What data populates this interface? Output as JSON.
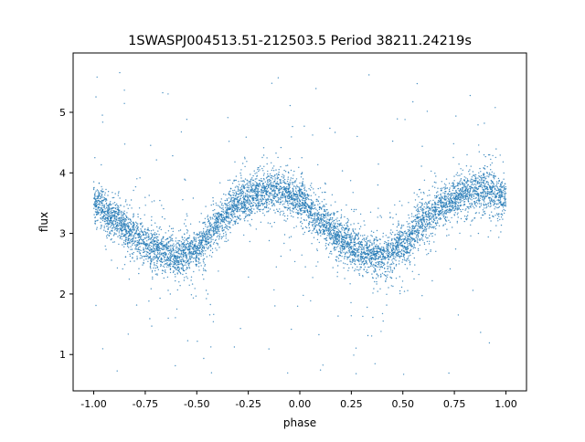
{
  "chart_data": {
    "type": "scatter",
    "title": "1SWASPJ004513.51-212503.5 Period 38211.24219s",
    "xlabel": "phase",
    "ylabel": "flux",
    "xlim": [
      -1.1,
      1.1
    ],
    "ylim": [
      0.4,
      5.98
    ],
    "xticks": [
      "-1.00",
      "-0.75",
      "-0.50",
      "-0.25",
      "0.00",
      "0.25",
      "0.50",
      "0.75",
      "1.00"
    ],
    "xtick_values": [
      -1,
      -0.75,
      -0.5,
      -0.25,
      0,
      0.25,
      0.5,
      0.75,
      1
    ],
    "yticks": [
      "1",
      "2",
      "3",
      "4",
      "5"
    ],
    "ytick_values": [
      1,
      2,
      3,
      4,
      5
    ],
    "grid": false,
    "color": "#1f77b4",
    "trend": {
      "phase": [
        -1.0,
        -0.9,
        -0.8,
        -0.7,
        -0.6,
        -0.5,
        -0.4,
        -0.3,
        -0.2,
        -0.1,
        0.0,
        0.1,
        0.2,
        0.3,
        0.4,
        0.5,
        0.6,
        0.7,
        0.8,
        0.9,
        1.0
      ],
      "flux": [
        3.5,
        3.25,
        2.95,
        2.72,
        2.62,
        2.75,
        3.15,
        3.5,
        3.68,
        3.72,
        3.55,
        3.2,
        2.9,
        2.7,
        2.62,
        2.8,
        3.2,
        3.5,
        3.68,
        3.72,
        3.58
      ]
    }
  }
}
